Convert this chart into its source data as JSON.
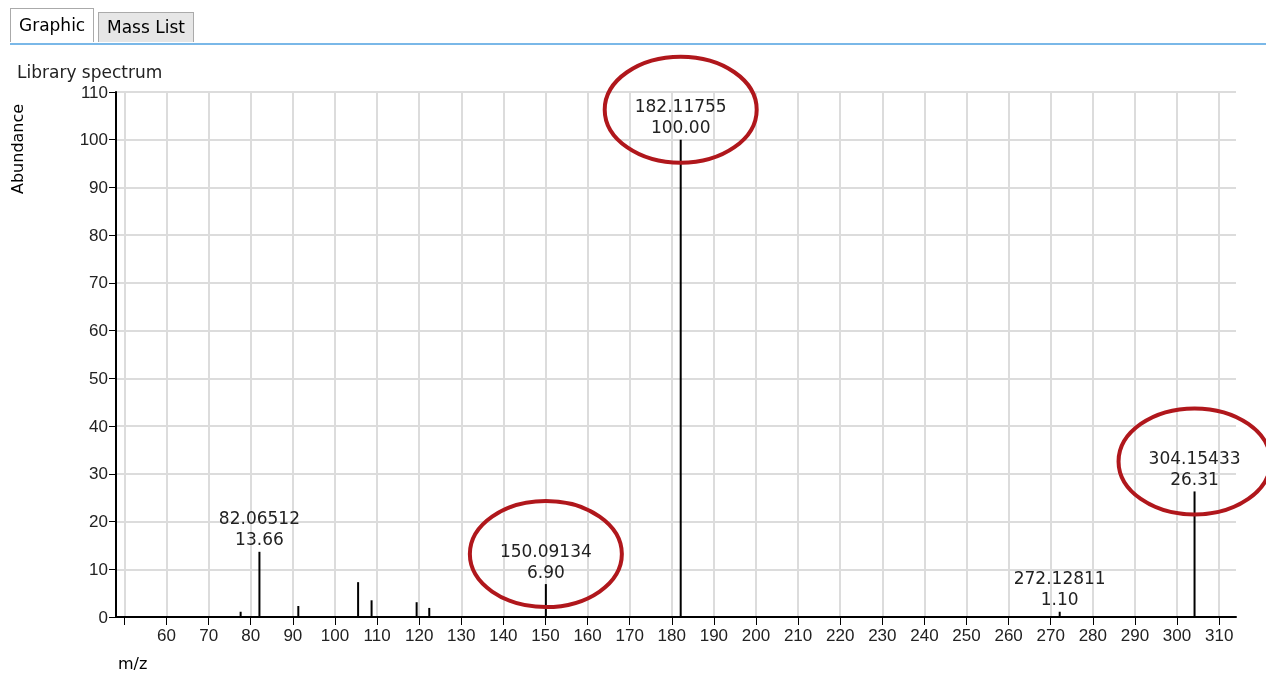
{
  "chart_data": {
    "type": "bar",
    "title": "Library spectrum",
    "xlabel": "m/z",
    "ylabel": "Abundance",
    "annotations": [
      "Graphic",
      "Mass List"
    ],
    "x": [
      77.6,
      82.06512,
      91.3,
      105.5,
      108.7,
      119.4,
      122.4,
      150.09134,
      182.11755,
      272.12811,
      304.15433
    ],
    "values": [
      1.1,
      13.66,
      2.3,
      7.3,
      3.5,
      3.1,
      1.9,
      6.9,
      100,
      1.1,
      26.31
    ],
    "value_labels": [
      null,
      "82.06512\n13.66",
      null,
      null,
      null,
      null,
      null,
      "150.09134\n6.90",
      "182.11755\n100.00",
      "272.12811\n1.10",
      "304.15433\n26.31"
    ],
    "color": "#000000",
    "xlim": [
      48,
      314
    ],
    "xticks": [
      {
        "value": 50,
        "label": null
      },
      60,
      70,
      80,
      90,
      100,
      110,
      120,
      130,
      140,
      150,
      160,
      170,
      180,
      190,
      200,
      210,
      220,
      230,
      240,
      250,
      260,
      270,
      280,
      290,
      300,
      310
    ],
    "ylim": [
      0,
      110
    ],
    "yticks": [
      0,
      10,
      20,
      30,
      40,
      50,
      60,
      70,
      80,
      90,
      100,
      110
    ],
    "grid": true
  }
}
